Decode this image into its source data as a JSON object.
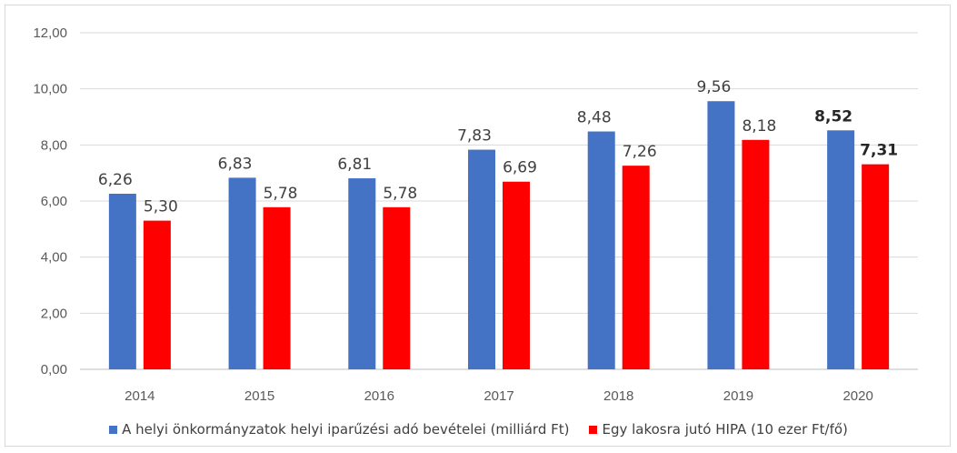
{
  "chart_data": {
    "type": "bar",
    "categories": [
      "2014",
      "2015",
      "2016",
      "2017",
      "2018",
      "2019",
      "2020"
    ],
    "series": [
      {
        "name": "A helyi önkormányzatok helyi iparűzési adó bevételei (milliárd Ft)",
        "color": "#4472c4",
        "values": [
          6.26,
          6.83,
          6.81,
          7.83,
          8.48,
          9.56,
          8.52
        ],
        "labels": [
          "6,26",
          "6,83",
          "6,81",
          "7,83",
          "8,48",
          "9,56",
          "8,52"
        ]
      },
      {
        "name": "Egy lakosra jutó HIPA (10 ezer Ft/fő)",
        "color": "#ff0000",
        "values": [
          5.3,
          5.78,
          5.78,
          6.69,
          7.26,
          8.18,
          7.31
        ],
        "labels": [
          "5,30",
          "5,78",
          "5,78",
          "6,69",
          "7,26",
          "8,18",
          "7,31"
        ]
      }
    ],
    "ylim": [
      0,
      12
    ],
    "yticks": [
      "0,00",
      "2,00",
      "4,00",
      "6,00",
      "8,00",
      "10,00",
      "12,00"
    ],
    "bold_last_labels": true,
    "grid": true,
    "legend_position": "bottom"
  }
}
